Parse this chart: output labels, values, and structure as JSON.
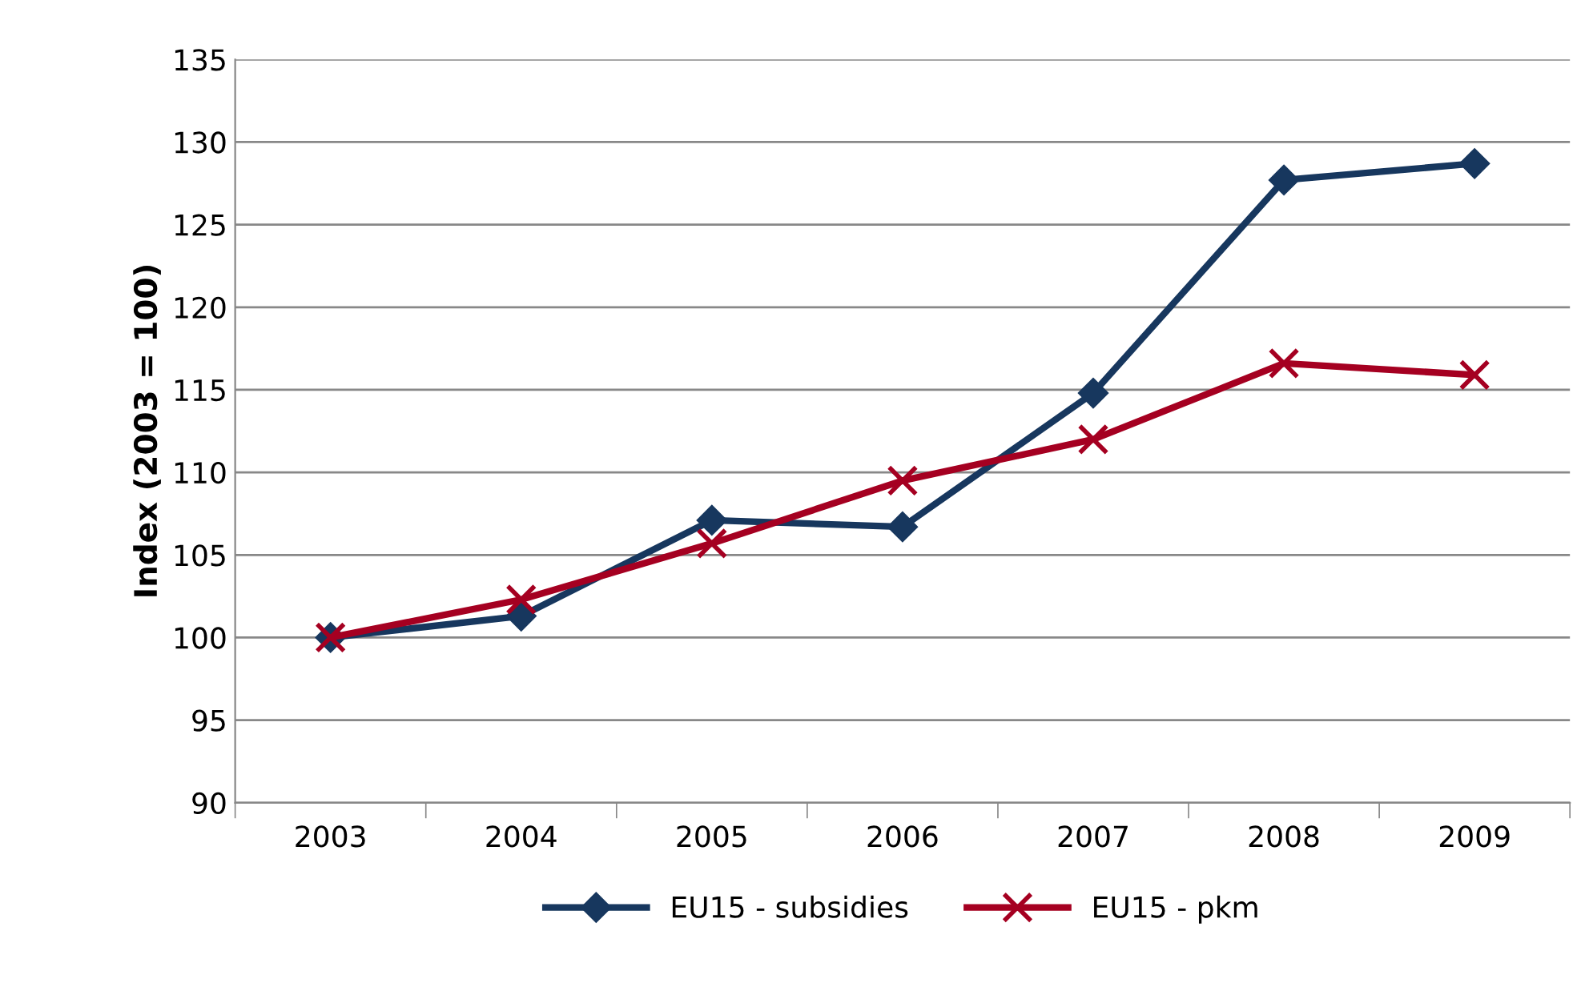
{
  "chart_data": {
    "type": "line",
    "ylabel": "Index (2003 = 100)",
    "categories": [
      "2003",
      "2004",
      "2005",
      "2006",
      "2007",
      "2008",
      "2009"
    ],
    "series": [
      {
        "name": "EU15 - subsidies",
        "color": "#17375e",
        "marker": "diamond",
        "values": [
          100,
          101.3,
          107.1,
          106.7,
          114.8,
          127.7,
          128.7
        ]
      },
      {
        "name": "EU15 - pkm",
        "color": "#a50021",
        "marker": "cross",
        "values": [
          100,
          102.3,
          105.7,
          109.5,
          112.0,
          116.6,
          115.9
        ]
      }
    ],
    "ylim": [
      90,
      135
    ],
    "yticks": [
      90,
      95,
      100,
      105,
      110,
      115,
      120,
      125,
      130,
      135
    ],
    "grid": "y",
    "legend": "bottom",
    "line_style": "solid"
  }
}
